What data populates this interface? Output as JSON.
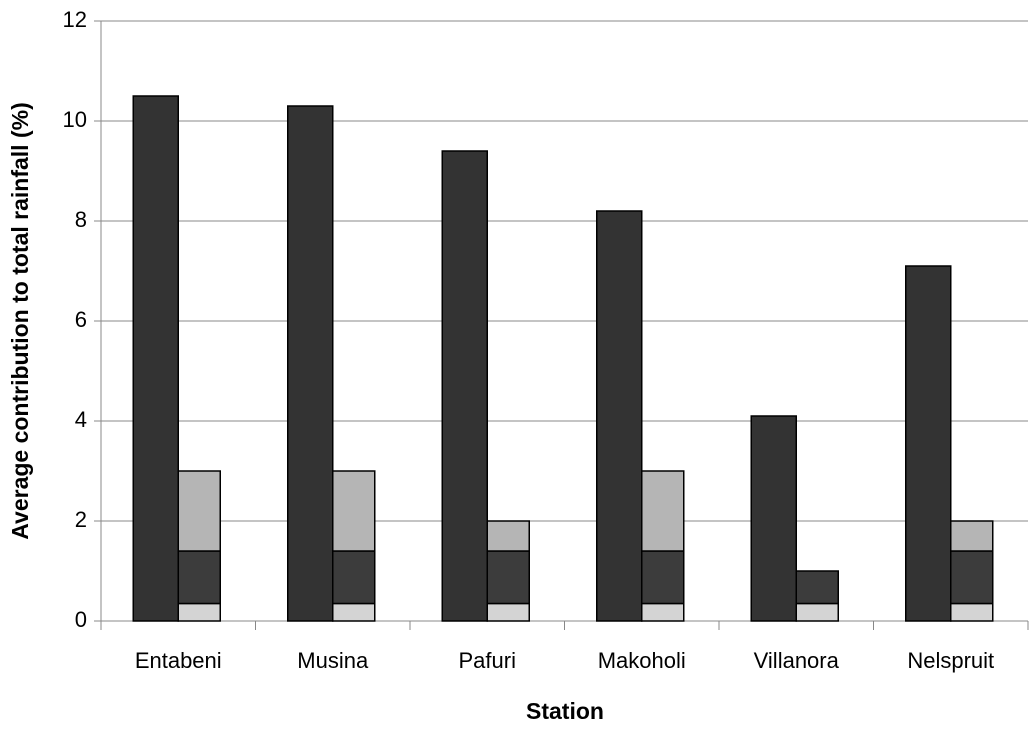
{
  "chart_data": {
    "type": "bar",
    "x_label": "Station",
    "y_label": "Average contribution to total rainfall (%)",
    "categories": [
      "Entabeni",
      "Musina",
      "Pafuri",
      "Makoholi",
      "Villanora",
      "Nelspruit"
    ],
    "series": [
      {
        "color": "#333333",
        "values": [
          10.5,
          10.3,
          9.4,
          8.2,
          4.1,
          7.1
        ]
      },
      {
        "color": "#d4d4d4",
        "stacked": true,
        "values": [
          0.35,
          0.35,
          0.35,
          0.35,
          0.35,
          0.35
        ]
      },
      {
        "color": "#3c3c3c",
        "stacked": true,
        "values": [
          1.05,
          1.05,
          1.05,
          1.05,
          0.65,
          1.05
        ]
      },
      {
        "color": "#b5b5b5",
        "stacked": true,
        "values": [
          1.6,
          1.6,
          0.6,
          1.6,
          0,
          0.6
        ]
      }
    ],
    "ylim": [
      0,
      12
    ],
    "yticks": [
      0,
      2,
      4,
      6,
      8,
      10,
      12
    ],
    "grid": true
  }
}
